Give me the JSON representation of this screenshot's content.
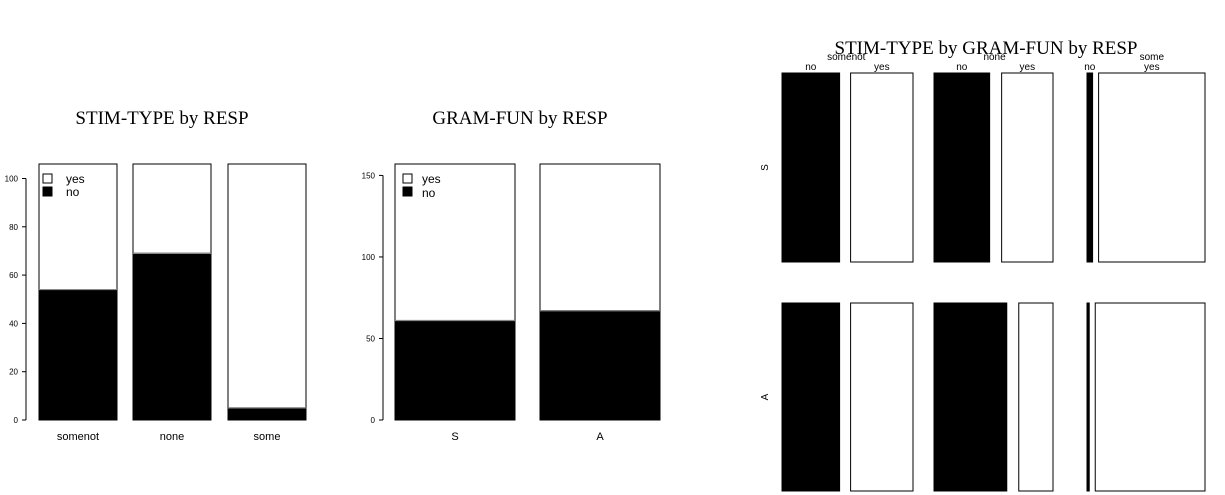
{
  "chart_data": [
    {
      "type": "bar",
      "stacked": true,
      "title": "STIM-TYPE by RESP",
      "categories": [
        "somenot",
        "none",
        "some"
      ],
      "series": [
        {
          "name": "no",
          "values": [
            54,
            69,
            5
          ],
          "color": "#000000"
        },
        {
          "name": "yes",
          "values": [
            52,
            37,
            101
          ],
          "color": "#ffffff"
        }
      ],
      "ylim": [
        0,
        106
      ],
      "yticks": [
        "0",
        "20",
        "40",
        "60",
        "80",
        "100"
      ],
      "legend": [
        "yes",
        "no"
      ],
      "legend_position": "top-left"
    },
    {
      "type": "bar",
      "stacked": true,
      "title": "GRAM-FUN by RESP",
      "categories": [
        "S",
        "A"
      ],
      "series": [
        {
          "name": "no",
          "values": [
            61,
            67
          ],
          "color": "#000000"
        },
        {
          "name": "yes",
          "values": [
            96,
            90
          ],
          "color": "#ffffff"
        }
      ],
      "ylim": [
        0,
        157
      ],
      "yticks": [
        "0",
        "50",
        "100",
        "150"
      ],
      "legend": [
        "yes",
        "no"
      ],
      "legend_position": "top-left"
    },
    {
      "type": "mosaic",
      "title": "STIM-TYPE by GRAM-FUN by RESP",
      "column_groups": [
        "somenot",
        "none",
        "some"
      ],
      "column_sublabels": [
        "no",
        "yes"
      ],
      "row_labels": [
        "S",
        "A"
      ],
      "no_share": [
        [
          0.48,
          0.52,
          0.05
        ],
        [
          0.48,
          0.68,
          0.02
        ]
      ]
    }
  ]
}
